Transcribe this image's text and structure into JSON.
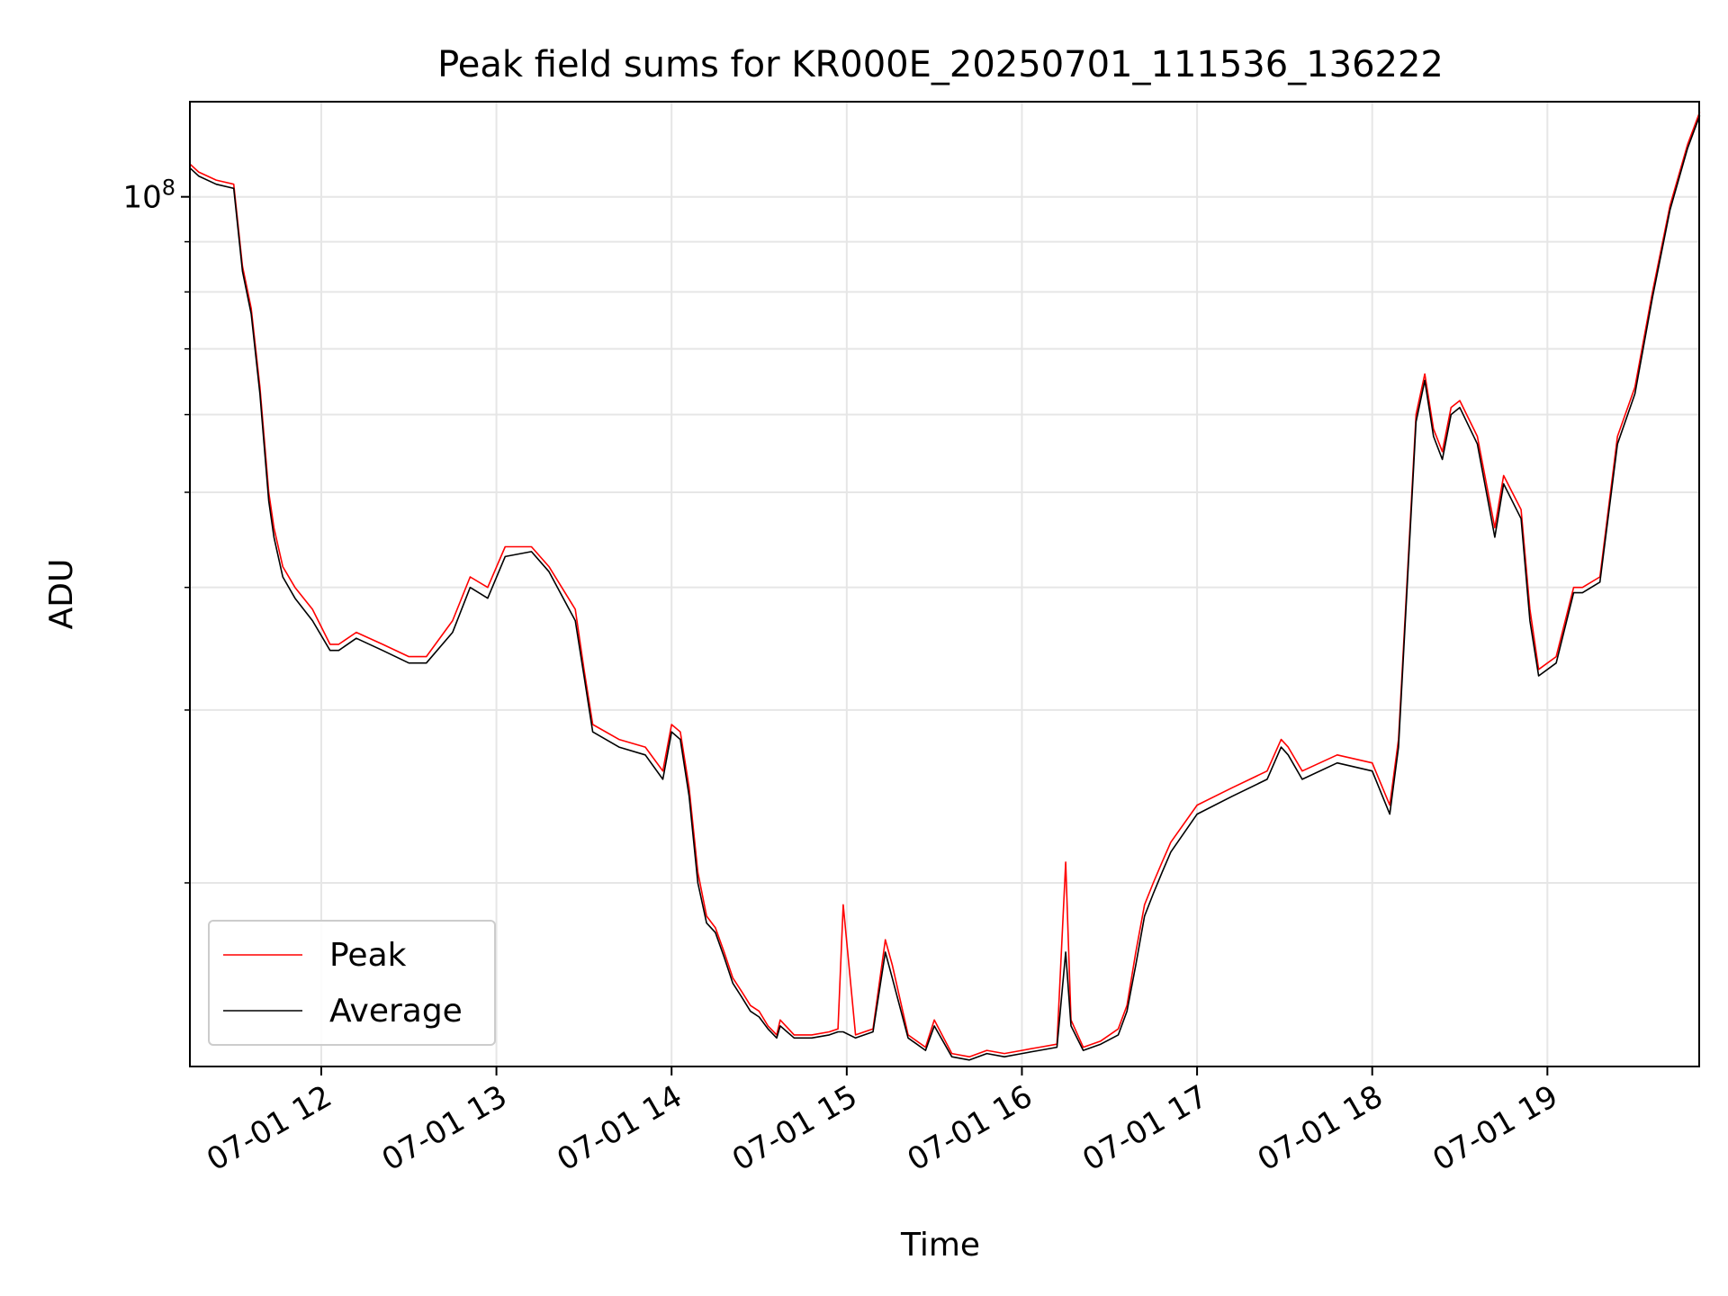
{
  "chart_data": {
    "type": "line",
    "title": "Peak field sums for KR000E_20250701_111536_136222",
    "xlabel": "Time",
    "ylabel": "ADU",
    "y_scale": "log",
    "ylim": [
      13000000,
      125000000
    ],
    "xlim": [
      "07-01 11:15",
      "07-01 19:52"
    ],
    "grid": true,
    "legend_position": "bottom-left",
    "x_ticks": [
      "07-01 12",
      "07-01 13",
      "07-01 14",
      "07-01 15",
      "07-01 16",
      "07-01 17",
      "07-01 18",
      "07-01 19"
    ],
    "x_tick_hours": [
      12,
      13,
      14,
      15,
      16,
      17,
      18,
      19
    ],
    "y_major_tick": {
      "value": 100000000,
      "label": "10^8"
    },
    "y_minor_ticks": [
      20000000,
      30000000,
      40000000,
      50000000,
      60000000,
      70000000,
      80000000,
      90000000
    ],
    "series": [
      {
        "name": "Peak",
        "color": "#ff0000",
        "x_hours": [
          11.25,
          11.3,
          11.4,
          11.5,
          11.55,
          11.6,
          11.65,
          11.7,
          11.73,
          11.78,
          11.85,
          11.95,
          12.05,
          12.1,
          12.2,
          12.35,
          12.5,
          12.6,
          12.75,
          12.85,
          12.95,
          13.05,
          13.2,
          13.3,
          13.45,
          13.5,
          13.55,
          13.7,
          13.85,
          13.95,
          14.0,
          14.05,
          14.1,
          14.15,
          14.2,
          14.25,
          14.3,
          14.35,
          14.4,
          14.45,
          14.5,
          14.55,
          14.6,
          14.62,
          14.7,
          14.8,
          14.9,
          14.95,
          14.98,
          15.05,
          15.15,
          15.22,
          15.26,
          15.35,
          15.45,
          15.5,
          15.6,
          15.7,
          15.8,
          15.9,
          16.0,
          16.1,
          16.2,
          16.25,
          16.28,
          16.35,
          16.45,
          16.55,
          16.6,
          16.65,
          16.7,
          16.75,
          16.8,
          16.85,
          17.0,
          17.2,
          17.4,
          17.48,
          17.52,
          17.6,
          17.8,
          18.0,
          18.1,
          18.15,
          18.25,
          18.3,
          18.35,
          18.4,
          18.45,
          18.5,
          18.6,
          18.7,
          18.75,
          18.85,
          18.9,
          18.95,
          19.05,
          19.15,
          19.2,
          19.3,
          19.4,
          19.5,
          19.6,
          19.7,
          19.8,
          19.87
        ],
        "values": [
          108000000,
          106000000,
          104000000,
          103000000,
          85000000,
          77000000,
          64000000,
          50000000,
          46000000,
          42000000,
          40000000,
          38000000,
          35000000,
          35000000,
          36000000,
          35000000,
          34000000,
          34000000,
          37000000,
          41000000,
          40000000,
          44000000,
          44000000,
          42000000,
          38000000,
          33000000,
          29000000,
          28000000,
          27500000,
          26000000,
          29000000,
          28500000,
          25000000,
          20500000,
          18500000,
          18000000,
          17000000,
          16000000,
          15500000,
          15000000,
          14800000,
          14300000,
          14000000,
          14500000,
          14000000,
          14000000,
          14100000,
          14200000,
          19000000,
          14000000,
          14200000,
          17500000,
          16500000,
          14000000,
          13600000,
          14500000,
          13400000,
          13300000,
          13500000,
          13400000,
          13500000,
          13600000,
          13700000,
          21000000,
          14500000,
          13600000,
          13800000,
          14200000,
          15000000,
          17000000,
          19000000,
          20000000,
          21000000,
          22000000,
          24000000,
          25000000,
          26000000,
          28000000,
          27500000,
          26000000,
          27000000,
          26500000,
          24000000,
          28000000,
          60000000,
          66000000,
          58000000,
          55000000,
          61000000,
          62000000,
          57000000,
          46000000,
          52000000,
          48000000,
          38000000,
          33000000,
          34000000,
          40000000,
          40000000,
          41000000,
          57000000,
          64000000,
          80000000,
          98000000,
          113000000,
          122000000
        ]
      },
      {
        "name": "Average",
        "color": "#000000",
        "x_hours": [
          11.25,
          11.3,
          11.4,
          11.5,
          11.55,
          11.6,
          11.65,
          11.7,
          11.73,
          11.78,
          11.85,
          11.95,
          12.05,
          12.1,
          12.2,
          12.35,
          12.5,
          12.6,
          12.75,
          12.85,
          12.95,
          13.05,
          13.2,
          13.3,
          13.45,
          13.5,
          13.55,
          13.7,
          13.85,
          13.95,
          14.0,
          14.05,
          14.1,
          14.15,
          14.2,
          14.25,
          14.3,
          14.35,
          14.4,
          14.45,
          14.5,
          14.55,
          14.6,
          14.62,
          14.7,
          14.8,
          14.9,
          14.95,
          14.98,
          15.05,
          15.15,
          15.22,
          15.26,
          15.35,
          15.45,
          15.5,
          15.6,
          15.7,
          15.8,
          15.9,
          16.0,
          16.1,
          16.2,
          16.25,
          16.28,
          16.35,
          16.45,
          16.55,
          16.6,
          16.65,
          16.7,
          16.75,
          16.8,
          16.85,
          17.0,
          17.2,
          17.4,
          17.48,
          17.52,
          17.6,
          17.8,
          18.0,
          18.1,
          18.15,
          18.25,
          18.3,
          18.35,
          18.4,
          18.45,
          18.5,
          18.6,
          18.7,
          18.75,
          18.85,
          18.9,
          18.95,
          19.05,
          19.15,
          19.2,
          19.3,
          19.4,
          19.5,
          19.6,
          19.7,
          19.8,
          19.87
        ],
        "values": [
          107000000,
          105000000,
          103000000,
          102000000,
          84000000,
          76000000,
          63000000,
          49000000,
          45000000,
          41000000,
          39000000,
          37000000,
          34500000,
          34500000,
          35500000,
          34500000,
          33500000,
          33500000,
          36000000,
          40000000,
          39000000,
          43000000,
          43500000,
          41500000,
          37000000,
          32500000,
          28500000,
          27500000,
          27000000,
          25500000,
          28500000,
          28000000,
          24500000,
          20000000,
          18200000,
          17800000,
          16800000,
          15800000,
          15300000,
          14800000,
          14600000,
          14200000,
          13900000,
          14300000,
          13900000,
          13900000,
          14000000,
          14100000,
          14100000,
          13900000,
          14100000,
          17000000,
          16000000,
          13900000,
          13500000,
          14300000,
          13300000,
          13200000,
          13400000,
          13300000,
          13400000,
          13500000,
          13600000,
          17000000,
          14300000,
          13500000,
          13700000,
          14000000,
          14800000,
          16500000,
          18500000,
          19500000,
          20500000,
          21500000,
          23500000,
          24500000,
          25500000,
          27500000,
          27000000,
          25500000,
          26500000,
          26000000,
          23500000,
          27500000,
          59000000,
          65000000,
          57000000,
          54000000,
          60000000,
          61000000,
          56000000,
          45000000,
          51000000,
          47000000,
          37000000,
          32500000,
          33500000,
          39500000,
          39500000,
          40500000,
          56000000,
          63000000,
          79000000,
          97000000,
          112000000,
          121000000
        ]
      }
    ]
  }
}
